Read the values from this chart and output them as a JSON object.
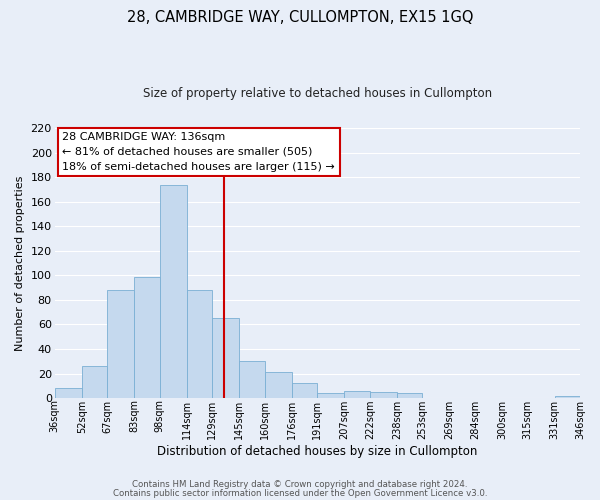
{
  "title": "28, CAMBRIDGE WAY, CULLOMPTON, EX15 1GQ",
  "subtitle": "Size of property relative to detached houses in Cullompton",
  "xlabel": "Distribution of detached houses by size in Cullompton",
  "ylabel": "Number of detached properties",
  "bin_edges": [
    36,
    52,
    67,
    83,
    98,
    114,
    129,
    145,
    160,
    176,
    191,
    207,
    222,
    238,
    253,
    269,
    284,
    300,
    315,
    331,
    346
  ],
  "bin_labels": [
    "36sqm",
    "52sqm",
    "67sqm",
    "83sqm",
    "98sqm",
    "114sqm",
    "129sqm",
    "145sqm",
    "160sqm",
    "176sqm",
    "191sqm",
    "207sqm",
    "222sqm",
    "238sqm",
    "253sqm",
    "269sqm",
    "284sqm",
    "300sqm",
    "315sqm",
    "331sqm",
    "346sqm"
  ],
  "bar_heights": [
    8,
    26,
    88,
    99,
    174,
    88,
    65,
    30,
    21,
    12,
    4,
    6,
    5,
    4,
    0,
    0,
    0,
    0,
    0,
    2
  ],
  "bar_color": "#c5d9ee",
  "bar_edgecolor": "#7aafd4",
  "bg_color": "#e8eef8",
  "grid_color": "#ffffff",
  "vline_x": 136,
  "vline_color": "#cc0000",
  "ylim": [
    0,
    220
  ],
  "yticks": [
    0,
    20,
    40,
    60,
    80,
    100,
    120,
    140,
    160,
    180,
    200,
    220
  ],
  "annotation_title": "28 CAMBRIDGE WAY: 136sqm",
  "annotation_line1": "← 81% of detached houses are smaller (505)",
  "annotation_line2": "18% of semi-detached houses are larger (115) →",
  "annotation_box_color": "#ffffff",
  "annotation_box_edgecolor": "#cc0000",
  "footer1": "Contains HM Land Registry data © Crown copyright and database right 2024.",
  "footer2": "Contains public sector information licensed under the Open Government Licence v3.0."
}
